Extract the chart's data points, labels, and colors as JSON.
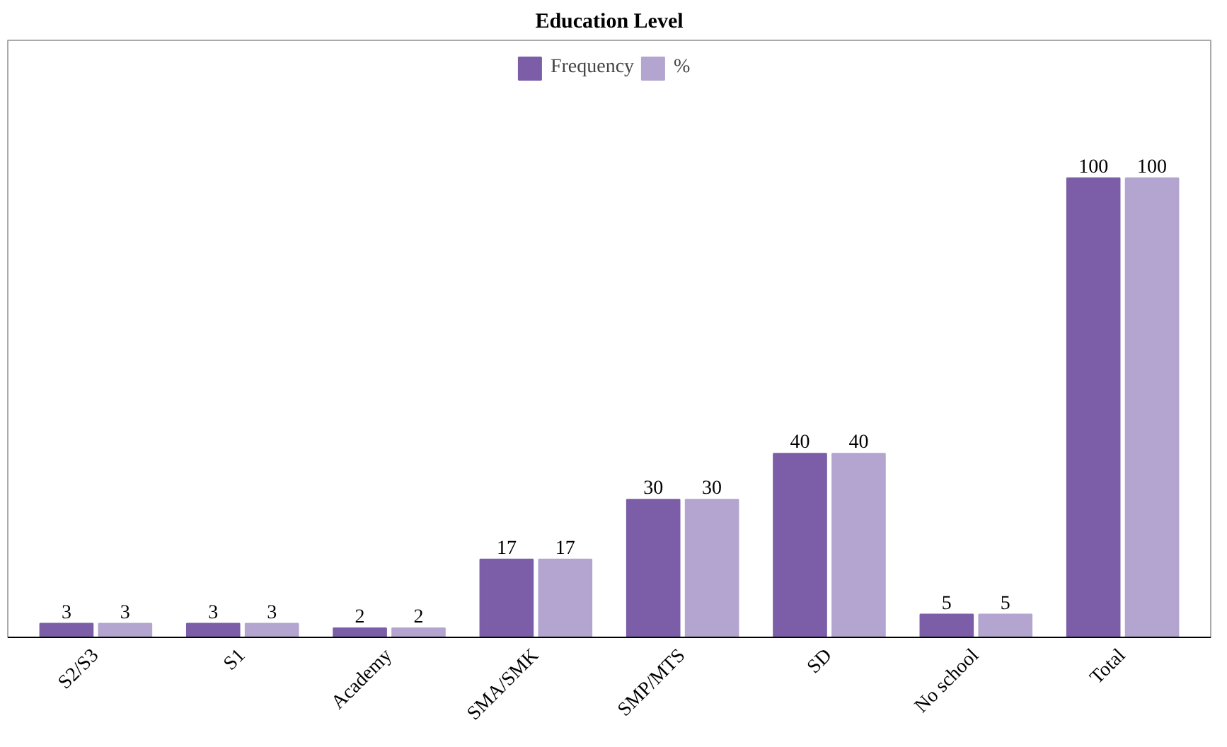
{
  "chart_data": {
    "type": "bar",
    "title": "Education Level",
    "categories": [
      "S2/S3",
      "S1",
      "Academy",
      "SMA/SMK",
      "SMP/MTS",
      "SD",
      "No school",
      "Total"
    ],
    "series": [
      {
        "name": "Frequency",
        "color": "#7b5ea7",
        "values": [
          3,
          3,
          2,
          17,
          30,
          40,
          5,
          100
        ]
      },
      {
        "name": "%",
        "color": "#b3a5cf",
        "values": [
          3,
          3,
          2,
          17,
          30,
          40,
          5,
          100
        ]
      }
    ],
    "data_labels": true,
    "legend": "top"
  }
}
